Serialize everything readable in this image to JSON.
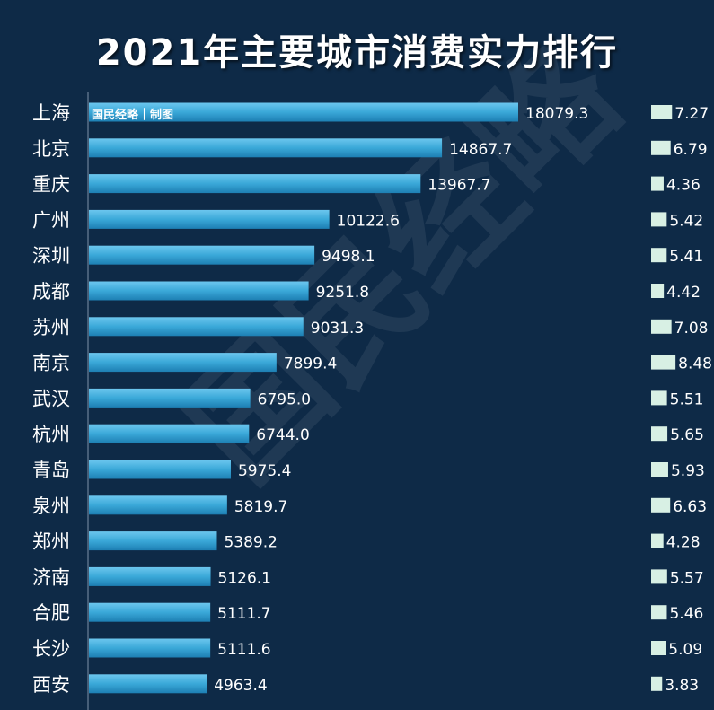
{
  "chart_data": {
    "type": "bar",
    "orientation": "horizontal",
    "title": "2021年主要城市消费实力排行",
    "categories": [
      "上海",
      "北京",
      "重庆",
      "广州",
      "深圳",
      "成都",
      "苏州",
      "南京",
      "武汉",
      "杭州",
      "青岛",
      "泉州",
      "郑州",
      "济南",
      "合肥",
      "长沙",
      "西安"
    ],
    "series": [
      {
        "values": [
          18079.3,
          14867.7,
          13967.7,
          10122.6,
          9498.1,
          9251.8,
          9031.3,
          7899.4,
          6795.0,
          6744.0,
          5975.4,
          5819.7,
          5389.2,
          5126.1,
          5111.7,
          5111.6,
          4963.4
        ],
        "value_labels": [
          "18079.3",
          "14867.7",
          "13967.7",
          "10122.6",
          "9498.1",
          "9251.8",
          "9031.3",
          "7899.4",
          "6795.0",
          "6744.0",
          "5975.4",
          "5819.7",
          "5389.2",
          "5126.1",
          "5111.7",
          "5111.6",
          "4963.4"
        ],
        "color": "#3aa8d8"
      },
      {
        "values": [
          7.27,
          6.79,
          4.36,
          5.42,
          5.41,
          4.42,
          7.08,
          8.48,
          5.51,
          5.65,
          5.93,
          6.63,
          4.28,
          5.57,
          5.46,
          5.09,
          3.83
        ],
        "value_labels": [
          "7.27",
          "6.79",
          "4.36",
          "5.42",
          "5.41",
          "4.42",
          "7.08",
          "8.48",
          "5.51",
          "5.65",
          "5.93",
          "6.63",
          "4.28",
          "5.57",
          "5.46",
          "5.09",
          "3.83"
        ],
        "color": "#d8f0e4"
      }
    ],
    "xlim": [
      0,
      18079.3
    ],
    "grid": false
  },
  "watermark": "国民经略",
  "credit": "国民经略｜制图",
  "colors": {
    "background": "#0e2a47",
    "bar": "#3aa8d8",
    "small_bar": "#d8f0e4",
    "text": "#ffffff"
  }
}
